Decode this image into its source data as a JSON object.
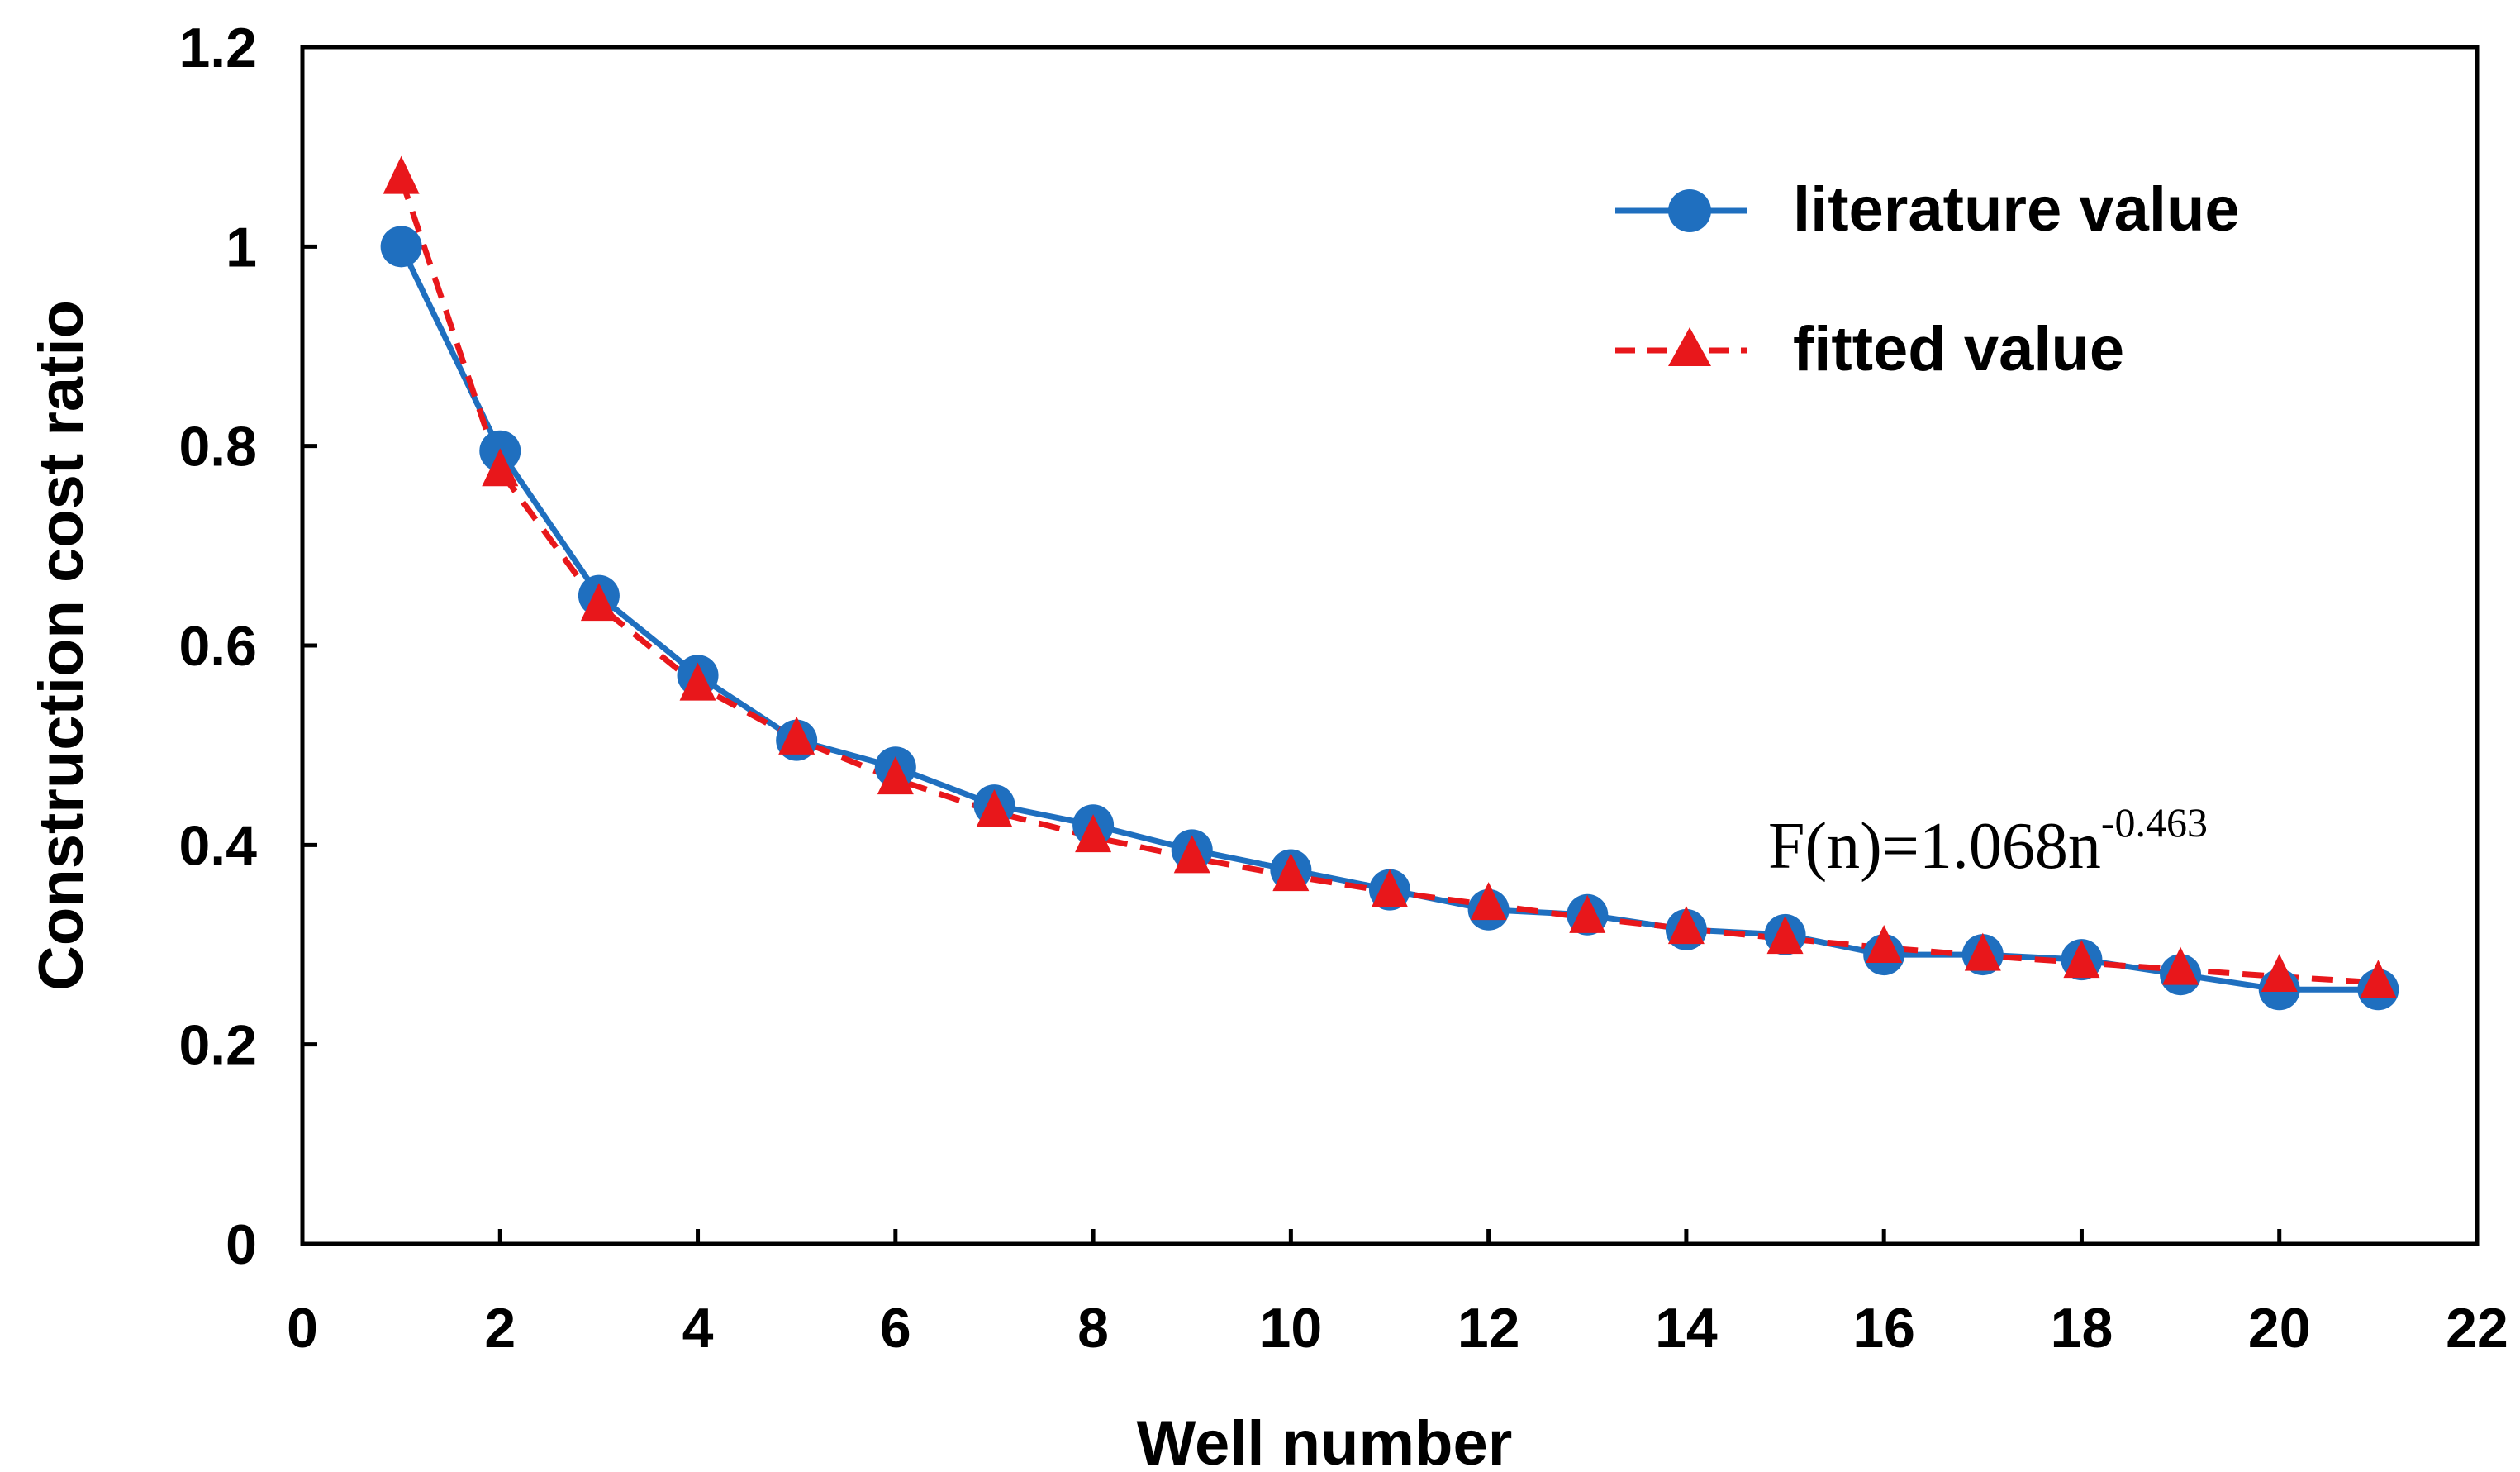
{
  "chart_data": {
    "type": "line",
    "title": "",
    "xlabel": "Well number",
    "ylabel": "Construction cost ratio",
    "xlim": [
      0,
      22
    ],
    "ylim": [
      0,
      1.2
    ],
    "xticks": [
      0,
      2,
      4,
      6,
      8,
      10,
      12,
      14,
      16,
      18,
      20,
      22
    ],
    "yticks": [
      0,
      0.2,
      0.4,
      0.6,
      0.8,
      1,
      1.2
    ],
    "xtick_labels": [
      "0",
      "2",
      "4",
      "6",
      "8",
      "10",
      "12",
      "14",
      "16",
      "18",
      "20",
      "22"
    ],
    "ytick_labels": [
      "0",
      "0.2",
      "0.4",
      "0.6",
      "0.8",
      "1",
      "1.2"
    ],
    "grid": false,
    "legend_position": "top-right",
    "x": [
      1,
      2,
      3,
      4,
      5,
      6,
      7,
      8,
      9,
      10,
      11,
      12,
      13,
      14,
      15,
      16,
      17,
      18,
      19,
      20,
      21
    ],
    "series": [
      {
        "name": "literature value",
        "marker": "circle",
        "line": "solid",
        "color": "#1f6fbf",
        "values": [
          1.0,
          0.795,
          0.65,
          0.57,
          0.505,
          0.478,
          0.44,
          0.42,
          0.395,
          0.375,
          0.355,
          0.335,
          0.33,
          0.315,
          0.31,
          0.29,
          0.29,
          0.285,
          0.27,
          0.255,
          0.255
        ]
      },
      {
        "name": "fitted value",
        "marker": "triangle",
        "line": "dashed",
        "color": "#e8171b",
        "values": [
          1.068,
          0.775,
          0.64,
          0.56,
          0.506,
          0.466,
          0.433,
          0.408,
          0.387,
          0.369,
          0.353,
          0.34,
          0.327,
          0.316,
          0.306,
          0.297,
          0.289,
          0.282,
          0.275,
          0.268,
          0.262
        ]
      }
    ],
    "annotation": {
      "base": "F(n)=1.068n",
      "exponent": "-0.463"
    }
  }
}
